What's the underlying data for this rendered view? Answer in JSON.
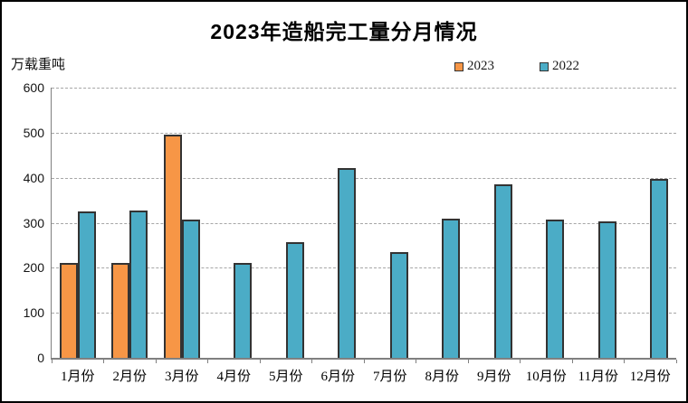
{
  "window": {
    "background": "#ffffff",
    "border_color": "#000000"
  },
  "chart_data": {
    "type": "bar",
    "title": "2023年造船完工量分月情况",
    "unit_label": "万载重吨",
    "categories": [
      "1月份",
      "2月份",
      "3月份",
      "4月份",
      "5月份",
      "6月份",
      "7月份",
      "8月份",
      "9月份",
      "10月份",
      "11月份",
      "12月份"
    ],
    "series": [
      {
        "name": "2023",
        "color": "#F79646",
        "values": [
          210,
          210,
          495,
          null,
          null,
          null,
          null,
          null,
          null,
          null,
          null,
          null
        ]
      },
      {
        "name": "2022",
        "color": "#4BACC6",
        "values": [
          325,
          327,
          307,
          210,
          257,
          421,
          235,
          310,
          386,
          308,
          304,
          397
        ]
      }
    ],
    "ylim": [
      0,
      600
    ],
    "ytick_interval": 100,
    "ytick_labels": [
      "0",
      "100",
      "200",
      "300",
      "400",
      "500",
      "600"
    ],
    "grid": "horizontal-dashed",
    "gridline_color": "#a6a6a6",
    "axis_color": "#808080",
    "bar_border_color": "#333333",
    "legend_position": "top-inside-right"
  }
}
